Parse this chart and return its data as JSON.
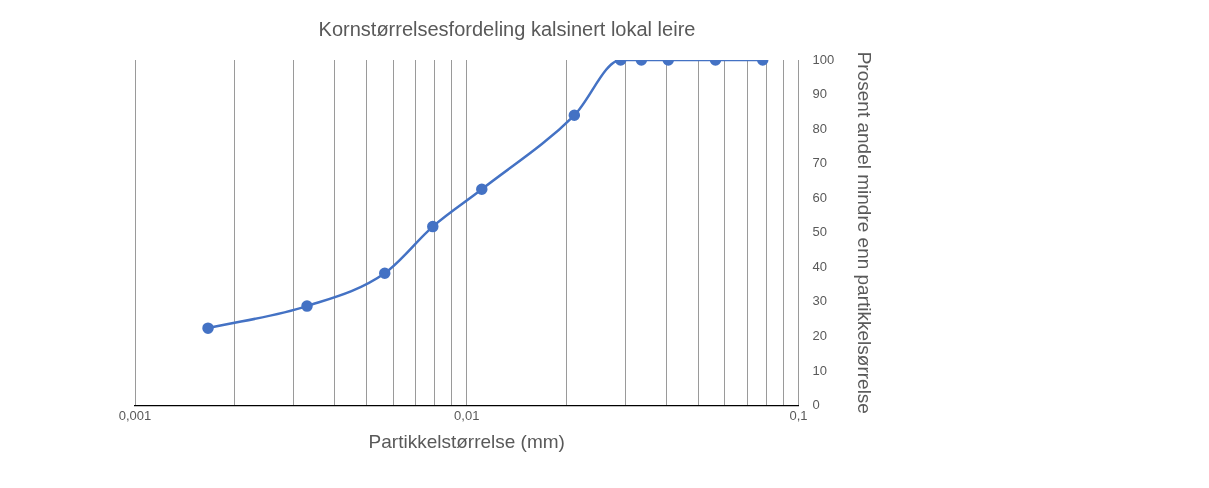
{
  "chart_data": {
    "type": "line",
    "title": "Kornstørrelsesfordeling kalsinert lokal leire",
    "xlabel": "Partikkelstørrelse (mm)",
    "ylabel": "Prosent andel mindre enn partikkelsørrelse",
    "log": "x",
    "series": [
      {
        "color": "#4472c4",
        "x": [
          0.00166,
          0.0033,
          0.00566,
          0.0079,
          0.0111,
          0.0211,
          0.0291,
          0.0336,
          0.0405,
          0.0562,
          0.078
        ],
        "values": [
          22.4,
          28.8,
          38.3,
          51.8,
          62.6,
          84,
          100,
          100,
          100,
          100,
          100
        ]
      }
    ],
    "xlim": [
      0.001,
      0.1
    ],
    "xticks": [
      {
        "value": 0.001,
        "label": "0,001"
      },
      {
        "value": 0.002,
        "label": null
      },
      {
        "value": 0.003,
        "label": null
      },
      {
        "value": 0.004,
        "label": null
      },
      {
        "value": 0.005,
        "label": null
      },
      {
        "value": 0.006,
        "label": null
      },
      {
        "value": 0.007,
        "label": null
      },
      {
        "value": 0.008,
        "label": null
      },
      {
        "value": 0.009,
        "label": null
      },
      {
        "value": 0.01,
        "label": "0,01"
      },
      {
        "value": 0.02,
        "label": null
      },
      {
        "value": 0.03,
        "label": null
      },
      {
        "value": 0.04,
        "label": null
      },
      {
        "value": 0.05,
        "label": null
      },
      {
        "value": 0.06,
        "label": null
      },
      {
        "value": 0.07,
        "label": null
      },
      {
        "value": 0.08,
        "label": null
      },
      {
        "value": 0.09,
        "label": null
      },
      {
        "value": 0.1,
        "label": "0,1"
      }
    ],
    "ylim": [
      0,
      100
    ],
    "yticks": [
      0,
      10,
      20,
      30,
      40,
      50,
      60,
      70,
      80,
      90,
      100
    ],
    "grid": "x",
    "marker": "circle",
    "line_style": "solid",
    "legend": false
  }
}
